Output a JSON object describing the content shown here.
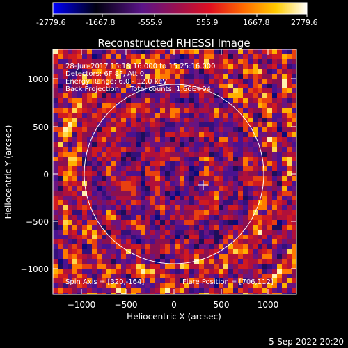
{
  "colorbar": {
    "ticks": [
      "-2779.6",
      "-1667.8",
      "-555.9",
      "555.9",
      "1667.8",
      "2779.6"
    ],
    "colors": [
      "#0000ff",
      "#000000",
      "#7a1aa0",
      "#e0102a",
      "#ff7a00",
      "#ffd200",
      "#ffffff"
    ]
  },
  "plot": {
    "title": "Reconstructed RHESSI Image",
    "xlabel": "Heliocentric X (arcsec)",
    "ylabel": "Heliocentric Y (arcsec)",
    "xticks": [
      "−1000",
      "−500",
      "0",
      "500",
      "1000"
    ],
    "yticks": [
      "1000",
      "500",
      "0",
      "−500",
      "−1000"
    ],
    "info": [
      "28-Jun-2017 15:18:16.000 to 15:25:16.000",
      "Detectors: 6F 8F, Att 0",
      "Energy Range: 6.0 - 12.0 keV",
      "Back Projection     Total counts: 1.66E+04"
    ],
    "spin_axis": "Spin Axis = [320,-164]",
    "flare_position": "Flare Position = [706,112]",
    "timestamp": "5-Sep-2022 20:20"
  },
  "chart_data": {
    "type": "heatmap",
    "title": "Reconstructed RHESSI Image",
    "xlabel": "Heliocentric X (arcsec)",
    "ylabel": "Heliocentric Y (arcsec)",
    "xlim": [
      -1300,
      1300
    ],
    "ylim": [
      -1250,
      1250
    ],
    "color_range": [
      -2779.6,
      2779.6
    ],
    "solar_disk_center": [
      0,
      0
    ],
    "solar_disk_radius_arcsec": 950,
    "marker_plus_at": [
      320,
      -164
    ]
  }
}
